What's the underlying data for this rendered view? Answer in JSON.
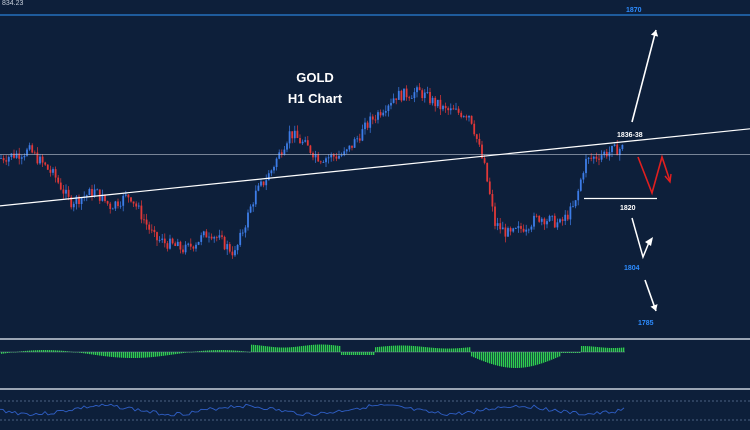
{
  "chart": {
    "title": "GOLD",
    "subtitle": "H1 Chart",
    "corner_price": "834.23"
  },
  "colors": {
    "background": "#0d1f3a",
    "bull": "#3d7de8",
    "bear": "#e23838",
    "level_line": "#2a7fd8",
    "trendline": "#ffffff",
    "horizontal": "#b9c2cf",
    "level_text": "#2d8cff",
    "macd": "#2fcf4f",
    "projection_red": "#e01f1f",
    "arrow": "#ffffff",
    "rsi": "#2f5fc6"
  },
  "chart_data": {
    "type": "candlestick",
    "title": "GOLD",
    "subtitle": "H1 Chart",
    "ylim": [
      1775,
      1875
    ],
    "price_path": [
      [
        0,
        1831
      ],
      [
        30,
        1833
      ],
      [
        55,
        1826
      ],
      [
        70,
        1819
      ],
      [
        95,
        1822
      ],
      [
        110,
        1818
      ],
      [
        130,
        1821
      ],
      [
        155,
        1809
      ],
      [
        185,
        1806
      ],
      [
        210,
        1811
      ],
      [
        235,
        1805
      ],
      [
        255,
        1821
      ],
      [
        270,
        1827
      ],
      [
        290,
        1838
      ],
      [
        320,
        1831
      ],
      [
        345,
        1832
      ],
      [
        370,
        1841
      ],
      [
        395,
        1848
      ],
      [
        420,
        1849
      ],
      [
        445,
        1844
      ],
      [
        470,
        1843
      ],
      [
        485,
        1828
      ],
      [
        495,
        1813
      ],
      [
        510,
        1810
      ],
      [
        540,
        1815
      ],
      [
        560,
        1813
      ],
      [
        575,
        1818
      ],
      [
        585,
        1830
      ],
      [
        600,
        1832
      ],
      [
        625,
        1834
      ]
    ],
    "levels": [
      {
        "label": "1870",
        "value": 1870
      },
      {
        "label": "1836-38",
        "value": 1837
      },
      {
        "label": "1820",
        "value": 1820
      },
      {
        "label": "1804",
        "value": 1804
      },
      {
        "label": "1785",
        "value": 1785
      }
    ],
    "horizontal_ref": 1832,
    "trendline": {
      "from": [
        0,
        1818
      ],
      "to": [
        750,
        1839
      ]
    }
  }
}
